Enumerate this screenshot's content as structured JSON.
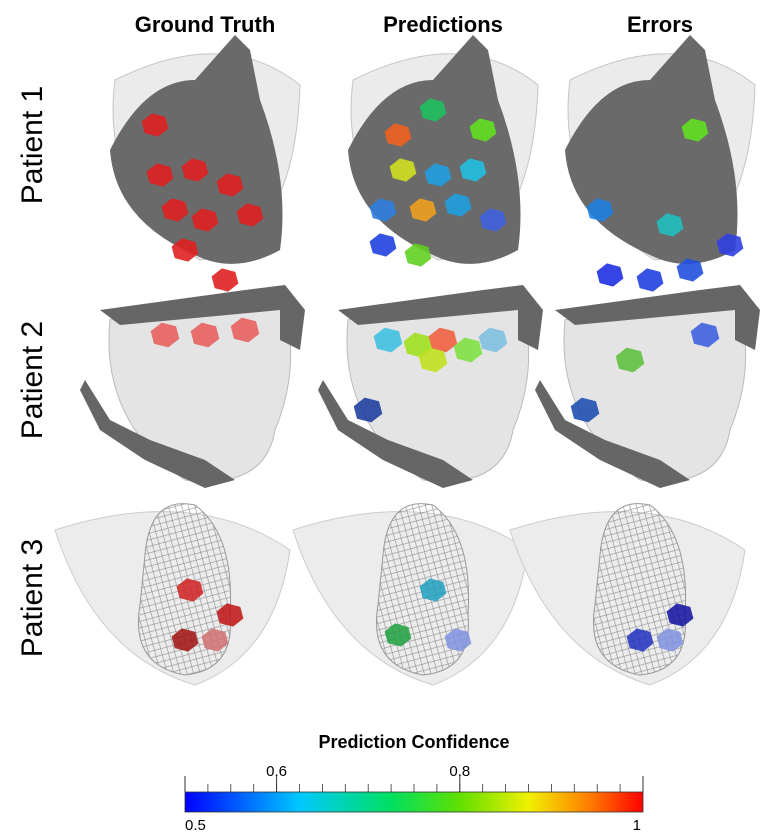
{
  "columns": [
    "Ground Truth",
    "Predictions",
    "Errors"
  ],
  "rows": [
    "Patient 1",
    "Patient 2",
    "Patient 3"
  ],
  "colorbar": {
    "title": "Prediction Confidence",
    "lim": [
      0.5,
      1
    ],
    "ticks": [
      0.5,
      0.6,
      0.8,
      1
    ]
  }
}
